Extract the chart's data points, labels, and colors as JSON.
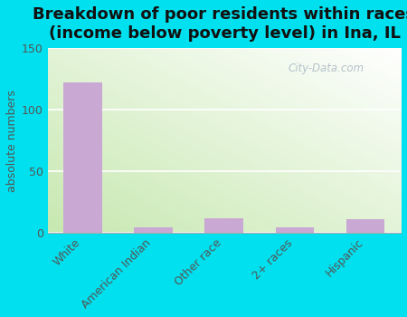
{
  "title": "Breakdown of poor residents within races\n(income below poverty level) in Ina, IL",
  "categories": [
    "White",
    "American Indian",
    "Other race",
    "2+ races",
    "Hispanic"
  ],
  "values": [
    122,
    5,
    12,
    5,
    11
  ],
  "bar_color": "#c9a8d4",
  "ylabel": "absolute numbers",
  "ylim": [
    0,
    150
  ],
  "yticks": [
    0,
    50,
    100,
    150
  ],
  "background_outer": "#00e0ee",
  "bg_grad_left": "#ffffff",
  "bg_grad_right": "#c8e8b0",
  "title_fontsize": 13,
  "axis_label_fontsize": 9,
  "tick_fontsize": 9,
  "watermark": "City-Data.com"
}
